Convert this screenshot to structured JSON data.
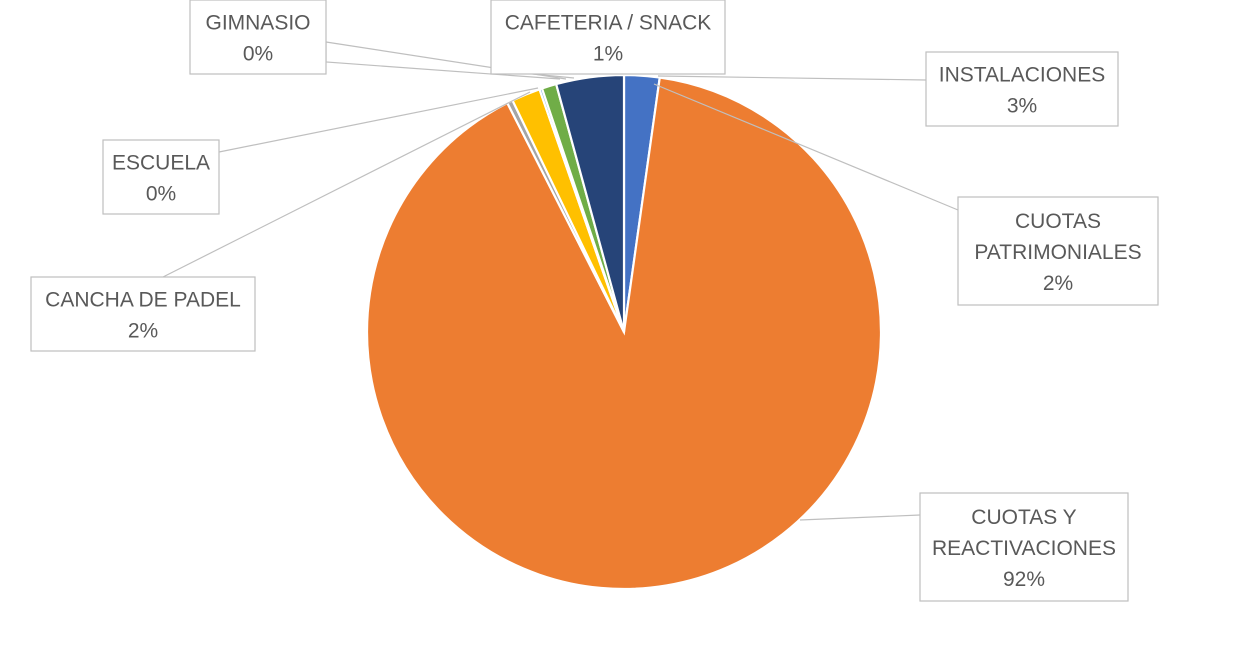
{
  "chart_data": {
    "type": "pie",
    "slices": [
      {
        "name": "CUOTAS PATRIMONIALES",
        "value": 2,
        "label": "2%",
        "color": "#4472C4"
      },
      {
        "name": "CUOTAS Y REACTIVACIONES",
        "value": 92,
        "label": "92%",
        "color": "#ED7D31"
      },
      {
        "name": "ESCUELA",
        "value": 0,
        "label": "0%",
        "color": "#A5A5A5"
      },
      {
        "name": "CANCHA DE PADEL",
        "value": 2,
        "label": "2%",
        "color": "#FFC000"
      },
      {
        "name": "GIMNASIO",
        "value": 0,
        "label": "0%",
        "color": "#5B9BD5"
      },
      {
        "name": "CAFETERIA / SNACK",
        "value": 1,
        "label": "1%",
        "color": "#70AD47"
      },
      {
        "name": "INSTALACIONES",
        "value": 3,
        "label": "3%",
        "color": "#264478"
      }
    ]
  }
}
